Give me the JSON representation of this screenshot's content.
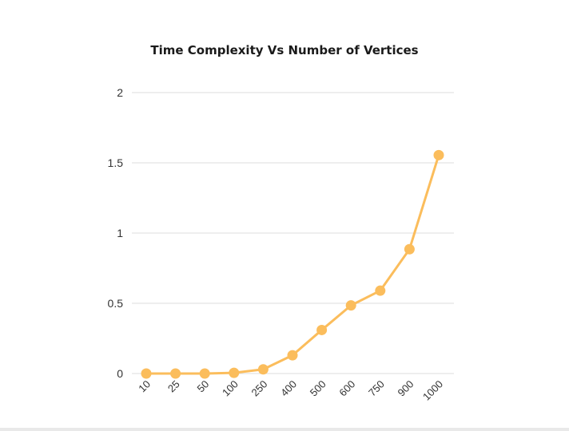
{
  "chart_data": {
    "type": "line",
    "title": "Time Complexity Vs Number of Vertices",
    "xlabel": "",
    "ylabel": "",
    "categories": [
      "10",
      "25",
      "50",
      "100",
      "250",
      "400",
      "500",
      "600",
      "750",
      "900",
      "1000"
    ],
    "series": [
      {
        "values": [
          0.0,
          0.0,
          0.0,
          0.005,
          0.03,
          0.13,
          0.31,
          0.485,
          0.59,
          0.885,
          1.555
        ],
        "color": "#fbbd5c"
      }
    ],
    "ylim": [
      0,
      2
    ],
    "yticks": [
      "0",
      "0.5",
      "1",
      "1.5",
      "2"
    ],
    "grid": true,
    "legend": "none"
  }
}
